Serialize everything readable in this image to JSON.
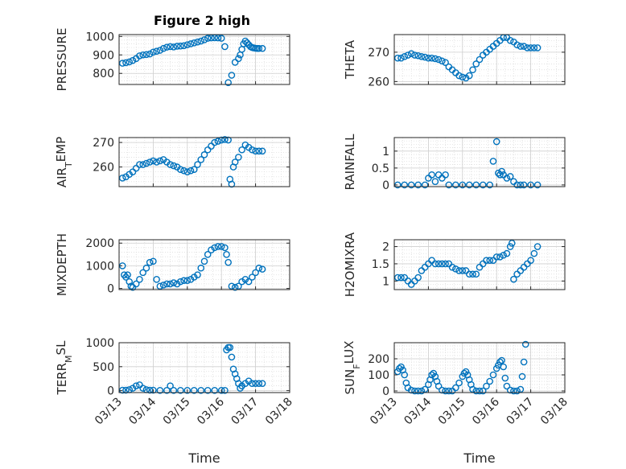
{
  "figure": {
    "title": "Figure 2 high",
    "marker_color": "#0072BD"
  },
  "chart_data": [
    {
      "type": "scatter",
      "title": "Figure 2 high",
      "ylabel": "PRESSURE",
      "xlabel": "",
      "ylim": [
        740,
        1010
      ],
      "yticks": [
        800,
        900,
        1000
      ],
      "xlim": [
        0,
        5
      ],
      "xticks": [],
      "grid": true,
      "x": [
        0.1,
        0.2,
        0.3,
        0.4,
        0.5,
        0.6,
        0.7,
        0.8,
        0.9,
        1.0,
        1.1,
        1.2,
        1.3,
        1.4,
        1.5,
        1.6,
        1.7,
        1.8,
        1.9,
        2.0,
        2.1,
        2.2,
        2.3,
        2.4,
        2.5,
        2.6,
        2.7,
        2.8,
        2.9,
        3.0,
        3.1,
        3.2,
        3.3,
        3.4,
        3.5,
        3.55,
        3.6,
        3.65,
        3.7,
        3.75,
        3.8,
        3.85,
        3.9,
        3.95,
        4.0,
        4.05,
        4.1,
        4.2
      ],
      "y": [
        855,
        858,
        862,
        870,
        880,
        895,
        900,
        902,
        905,
        915,
        920,
        925,
        935,
        942,
        945,
        943,
        947,
        948,
        950,
        955,
        960,
        965,
        970,
        975,
        982,
        990,
        992,
        993,
        992,
        990,
        945,
        750,
        790,
        860,
        880,
        900,
        930,
        960,
        975,
        965,
        955,
        945,
        940,
        938,
        936,
        935,
        935,
        935
      ]
    },
    {
      "type": "scatter",
      "ylabel": "THETA",
      "xlabel": "",
      "ylim": [
        259,
        276
      ],
      "yticks": [
        260,
        270
      ],
      "xlim": [
        0,
        5
      ],
      "xticks": [],
      "grid": true,
      "x": [
        0.1,
        0.2,
        0.3,
        0.4,
        0.5,
        0.6,
        0.7,
        0.8,
        0.9,
        1.0,
        1.1,
        1.2,
        1.3,
        1.4,
        1.5,
        1.6,
        1.7,
        1.8,
        1.9,
        2.0,
        2.1,
        2.2,
        2.3,
        2.4,
        2.5,
        2.6,
        2.7,
        2.8,
        2.9,
        3.0,
        3.1,
        3.2,
        3.3,
        3.4,
        3.5,
        3.6,
        3.7,
        3.8,
        3.9,
        4.0,
        4.1,
        4.2
      ],
      "y": [
        268,
        268,
        268.5,
        269,
        269.5,
        269,
        268.8,
        268.5,
        268.3,
        268,
        268,
        267.8,
        267.5,
        267,
        266.5,
        265,
        264,
        263,
        262,
        261.5,
        261.2,
        262,
        264,
        266,
        267.5,
        269,
        270,
        271,
        272,
        273,
        274,
        275,
        275,
        274,
        273.5,
        272.5,
        272,
        272,
        271.5,
        271.5,
        271.5,
        271.5
      ]
    },
    {
      "type": "scatter",
      "ylabel": "AIR_TEMP",
      "xlabel": "",
      "ylim": [
        252,
        272
      ],
      "yticks": [
        260,
        270
      ],
      "xlim": [
        0,
        5
      ],
      "xticks": [],
      "grid": true,
      "x": [
        0.1,
        0.2,
        0.3,
        0.4,
        0.5,
        0.6,
        0.7,
        0.8,
        0.9,
        1.0,
        1.1,
        1.2,
        1.3,
        1.4,
        1.5,
        1.6,
        1.7,
        1.8,
        1.9,
        2.0,
        2.1,
        2.2,
        2.3,
        2.4,
        2.5,
        2.6,
        2.7,
        2.8,
        2.9,
        3.0,
        3.1,
        3.2,
        3.25,
        3.3,
        3.35,
        3.4,
        3.5,
        3.6,
        3.7,
        3.8,
        3.9,
        4.0,
        4.1,
        4.2
      ],
      "y": [
        255.5,
        256,
        257,
        258,
        259.5,
        261,
        261,
        261.5,
        262,
        262.5,
        262,
        262.5,
        263,
        262,
        261,
        260.5,
        260,
        259,
        258.5,
        258,
        258.5,
        259,
        261,
        263,
        265,
        267,
        268.5,
        270,
        270.5,
        271,
        271.2,
        271,
        255,
        253,
        260,
        262,
        264,
        267,
        269,
        268,
        267,
        266.5,
        266.5,
        266.5
      ]
    },
    {
      "type": "scatter",
      "ylabel": "RAINFALL",
      "xlabel": "",
      "ylim": [
        -0.05,
        1.4
      ],
      "yticks": [
        0,
        0.5,
        1
      ],
      "xlim": [
        0,
        5
      ],
      "xticks": [],
      "grid": true,
      "x": [
        0.1,
        0.3,
        0.5,
        0.7,
        0.9,
        1.0,
        1.1,
        1.2,
        1.3,
        1.4,
        1.5,
        1.6,
        1.8,
        2.0,
        2.2,
        2.4,
        2.6,
        2.8,
        2.9,
        3.0,
        3.05,
        3.1,
        3.15,
        3.2,
        3.3,
        3.4,
        3.5,
        3.6,
        3.7,
        3.8,
        4.0,
        4.2
      ],
      "y": [
        0,
        0,
        0,
        0,
        0,
        0.2,
        0.3,
        0.1,
        0.3,
        0.2,
        0.3,
        0,
        0,
        0,
        0,
        0,
        0,
        0,
        0.7,
        1.28,
        0.35,
        0.3,
        0.4,
        0.3,
        0.2,
        0.25,
        0.1,
        0,
        0,
        0,
        0,
        0
      ]
    },
    {
      "type": "scatter",
      "ylabel": "MIXDEPTH",
      "xlabel": "",
      "ylim": [
        -50,
        2150
      ],
      "yticks": [
        0,
        1000,
        2000
      ],
      "xlim": [
        0,
        5
      ],
      "xticks": [],
      "grid": true,
      "x": [
        0.1,
        0.15,
        0.2,
        0.25,
        0.3,
        0.35,
        0.4,
        0.5,
        0.6,
        0.7,
        0.8,
        0.9,
        1.0,
        1.1,
        1.2,
        1.3,
        1.4,
        1.5,
        1.6,
        1.7,
        1.8,
        1.9,
        2.0,
        2.1,
        2.2,
        2.3,
        2.4,
        2.5,
        2.6,
        2.7,
        2.8,
        2.9,
        3.0,
        3.1,
        3.15,
        3.2,
        3.3,
        3.4,
        3.5,
        3.6,
        3.7,
        3.8,
        3.9,
        4.0,
        4.1,
        4.2
      ],
      "y": [
        1000,
        600,
        500,
        600,
        300,
        100,
        50,
        200,
        400,
        700,
        900,
        1150,
        1200,
        400,
        100,
        150,
        200,
        200,
        250,
        200,
        300,
        350,
        350,
        400,
        500,
        600,
        900,
        1200,
        1500,
        1700,
        1800,
        1850,
        1850,
        1800,
        1500,
        1150,
        100,
        50,
        100,
        300,
        400,
        300,
        500,
        700,
        900,
        850
      ]
    },
    {
      "type": "scatter",
      "ylabel": "H2OMIXRA",
      "xlabel": "",
      "ylim": [
        0.75,
        2.2
      ],
      "yticks": [
        1,
        1.5,
        2
      ],
      "xlim": [
        0,
        5
      ],
      "xticks": [],
      "grid": true,
      "x": [
        0.1,
        0.2,
        0.3,
        0.4,
        0.5,
        0.6,
        0.7,
        0.8,
        0.9,
        1.0,
        1.1,
        1.2,
        1.3,
        1.4,
        1.5,
        1.6,
        1.7,
        1.8,
        1.9,
        2.0,
        2.1,
        2.2,
        2.3,
        2.4,
        2.5,
        2.6,
        2.7,
        2.8,
        2.9,
        3.0,
        3.1,
        3.2,
        3.3,
        3.4,
        3.45,
        3.5,
        3.6,
        3.7,
        3.8,
        3.9,
        4.0,
        4.1,
        4.2
      ],
      "y": [
        1.1,
        1.1,
        1.1,
        1.0,
        0.9,
        1.0,
        1.1,
        1.3,
        1.4,
        1.5,
        1.6,
        1.5,
        1.5,
        1.5,
        1.5,
        1.5,
        1.4,
        1.35,
        1.3,
        1.3,
        1.3,
        1.2,
        1.2,
        1.2,
        1.4,
        1.5,
        1.6,
        1.6,
        1.6,
        1.7,
        1.7,
        1.75,
        1.8,
        2.0,
        2.1,
        1.05,
        1.2,
        1.3,
        1.4,
        1.5,
        1.6,
        1.8,
        2.0
      ]
    },
    {
      "type": "scatter",
      "ylabel": "TERR_MSL",
      "xlabel": "Time",
      "ylim": [
        -40,
        1000
      ],
      "yticks": [
        0,
        500,
        1000
      ],
      "xlim": [
        0,
        5
      ],
      "xticks": [
        "03/13",
        "03/14",
        "03/15",
        "03/16",
        "03/17",
        "03/18"
      ],
      "grid": true,
      "x": [
        0.1,
        0.2,
        0.3,
        0.4,
        0.5,
        0.6,
        0.7,
        0.8,
        0.9,
        1.0,
        1.2,
        1.4,
        1.5,
        1.6,
        1.8,
        2.0,
        2.2,
        2.4,
        2.6,
        2.8,
        3.0,
        3.1,
        3.15,
        3.2,
        3.25,
        3.3,
        3.35,
        3.4,
        3.45,
        3.5,
        3.55,
        3.6,
        3.7,
        3.8,
        3.9,
        4.0,
        4.1,
        4.2
      ],
      "y": [
        10,
        10,
        20,
        50,
        100,
        120,
        50,
        20,
        10,
        10,
        5,
        5,
        100,
        5,
        5,
        5,
        5,
        5,
        5,
        5,
        5,
        5,
        850,
        900,
        900,
        700,
        450,
        350,
        250,
        150,
        50,
        100,
        150,
        200,
        150,
        150,
        150,
        150
      ]
    },
    {
      "type": "scatter",
      "ylabel": "SUN_FLUX",
      "xlabel": "Time",
      "ylim": [
        -10,
        300
      ],
      "yticks": [
        0,
        100,
        200
      ],
      "xlim": [
        0,
        5
      ],
      "xticks": [
        "03/13",
        "03/14",
        "03/15",
        "03/16",
        "03/17",
        "03/18"
      ],
      "grid": true,
      "x": [
        0.1,
        0.15,
        0.2,
        0.25,
        0.3,
        0.35,
        0.4,
        0.5,
        0.6,
        0.7,
        0.8,
        0.9,
        1.0,
        1.05,
        1.1,
        1.15,
        1.2,
        1.25,
        1.3,
        1.4,
        1.5,
        1.6,
        1.7,
        1.8,
        1.9,
        2.0,
        2.05,
        2.1,
        2.15,
        2.2,
        2.25,
        2.3,
        2.4,
        2.5,
        2.6,
        2.7,
        2.8,
        2.9,
        3.0,
        3.05,
        3.1,
        3.15,
        3.2,
        3.25,
        3.3,
        3.4,
        3.5,
        3.6,
        3.7,
        3.75,
        3.8,
        3.85
      ],
      "y": [
        120,
        140,
        150,
        130,
        100,
        50,
        20,
        5,
        0,
        0,
        0,
        10,
        40,
        70,
        100,
        110,
        90,
        60,
        30,
        5,
        0,
        0,
        0,
        20,
        50,
        90,
        110,
        120,
        100,
        70,
        40,
        10,
        0,
        0,
        0,
        30,
        60,
        100,
        140,
        160,
        180,
        190,
        150,
        80,
        30,
        5,
        0,
        0,
        10,
        90,
        180,
        290
      ]
    }
  ]
}
